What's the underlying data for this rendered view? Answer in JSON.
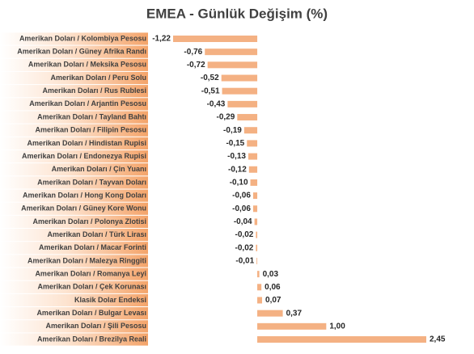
{
  "chart_data": {
    "type": "bar",
    "orientation": "horizontal",
    "title": "EMEA - Günlük Değişim (%)",
    "color": "#f4b183",
    "categories": [
      "Amerikan Doları / Kolombiya Pesosu",
      "Amerikan Doları / Güney Afrika Randı",
      "Amerikan Doları / Meksika Pesosu",
      "Amerikan Doları / Peru Solu",
      "Amerikan Doları / Rus Rublesi",
      "Amerikan Doları / Arjantin Pesosu",
      "Amerikan Doları / Tayland Bahtı",
      "Amerikan Doları / Filipin Pesosu",
      "Amerikan Doları / Hindistan Rupisi",
      "Amerikan Doları / Endonezya Rupisi",
      "Amerikan Doları / Çin Yuanı",
      "Amerikan Doları / Tayvan Doları",
      "Amerikan Doları / Hong Kong Doları",
      "Amerikan Doları / Güney Kore Wonu",
      "Amerikan Doları / Polonya Zlotisi",
      "Amerikan Doları / Türk Lirası",
      "Amerikan Doları / Macar Forinti",
      "Amerikan Doları / Malezya Ringgiti",
      "Amerikan Doları / Romanya Leyi",
      "Amerikan Doları / Çek Korunası",
      "Klasik Dolar Endeksi",
      "Amerikan Doları / Bulgar Levası",
      "Amerikan Doları / Şili Pesosu",
      "Amerikan Doları / Brezilya Reali"
    ],
    "values": [
      -1.22,
      -0.76,
      -0.72,
      -0.52,
      -0.51,
      -0.43,
      -0.29,
      -0.19,
      -0.15,
      -0.13,
      -0.12,
      -0.1,
      -0.06,
      -0.06,
      -0.04,
      -0.02,
      -0.02,
      -0.01,
      0.03,
      0.06,
      0.07,
      0.37,
      1.0,
      2.45
    ],
    "value_labels": [
      "-1,22",
      "-0,76",
      "-0,72",
      "-0,52",
      "-0,51",
      "-0,43",
      "-0,29",
      "-0,19",
      "-0,15",
      "-0,13",
      "-0,12",
      "-0,10",
      "-0,06",
      "-0,06",
      "-0,04",
      "-0,02",
      "-0,02",
      "-0,01",
      "0,03",
      "0,06",
      "0,07",
      "0,37",
      "1,00",
      "2,45"
    ]
  }
}
